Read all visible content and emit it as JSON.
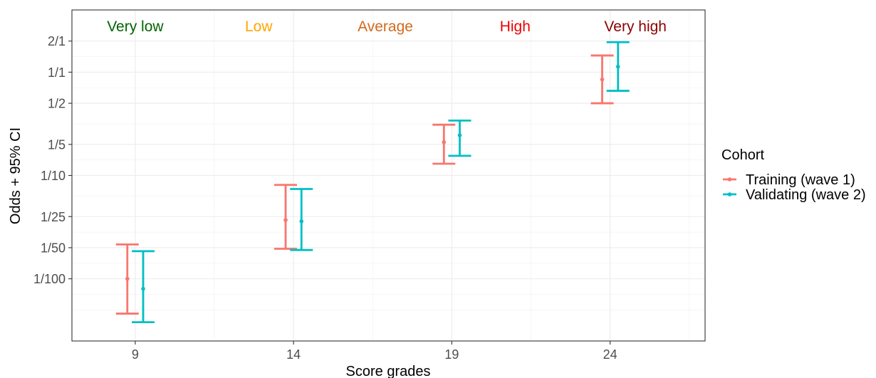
{
  "chart_data": {
    "type": "errorbar",
    "xlabel": "Score grades",
    "ylabel": "Odds + 95% CI",
    "scale_y": "log",
    "ylim": [
      0.0025,
      4
    ],
    "xlim": [
      7,
      27
    ],
    "x_ticks": [
      9,
      14,
      19,
      24
    ],
    "y_ticks": [
      {
        "label": "2/1",
        "value": 2
      },
      {
        "label": "1/1",
        "value": 1
      },
      {
        "label": "1/2",
        "value": 0.5
      },
      {
        "label": "1/5",
        "value": 0.2
      },
      {
        "label": "1/10",
        "value": 0.1
      },
      {
        "label": "1/25",
        "value": 0.04
      },
      {
        "label": "1/50",
        "value": 0.02
      },
      {
        "label": "1/100",
        "value": 0.01
      }
    ],
    "grid": true,
    "legend_position": "right",
    "legend_title": "Cohort",
    "bands": [
      {
        "label": "Very low",
        "x": 9,
        "color": "#006400"
      },
      {
        "label": "Low",
        "x": 12.9,
        "color": "#FFA500"
      },
      {
        "label": "Average",
        "x": 16.9,
        "color": "#D2691E"
      },
      {
        "label": "High",
        "x": 21,
        "color": "#EE0000"
      },
      {
        "label": "Very high",
        "x": 24.8,
        "color": "#8B0000"
      }
    ],
    "series": [
      {
        "name": "Training (wave 1)",
        "color": "#F8766D",
        "points": [
          {
            "x": 9,
            "y": 0.01,
            "lower": 0.0046,
            "upper": 0.0215
          },
          {
            "x": 14,
            "y": 0.037,
            "lower": 0.0195,
            "upper": 0.081
          },
          {
            "x": 19,
            "y": 0.21,
            "lower": 0.13,
            "upper": 0.31
          },
          {
            "x": 24,
            "y": 0.85,
            "lower": 0.5,
            "upper": 1.45
          }
        ]
      },
      {
        "name": "Validating (wave 2)",
        "color": "#00BFC4",
        "points": [
          {
            "x": 9,
            "y": 0.008,
            "lower": 0.0038,
            "upper": 0.0185
          },
          {
            "x": 14,
            "y": 0.036,
            "lower": 0.019,
            "upper": 0.074
          },
          {
            "x": 19,
            "y": 0.245,
            "lower": 0.155,
            "upper": 0.34
          },
          {
            "x": 24,
            "y": 1.13,
            "lower": 0.66,
            "upper": 1.95
          }
        ]
      }
    ]
  }
}
